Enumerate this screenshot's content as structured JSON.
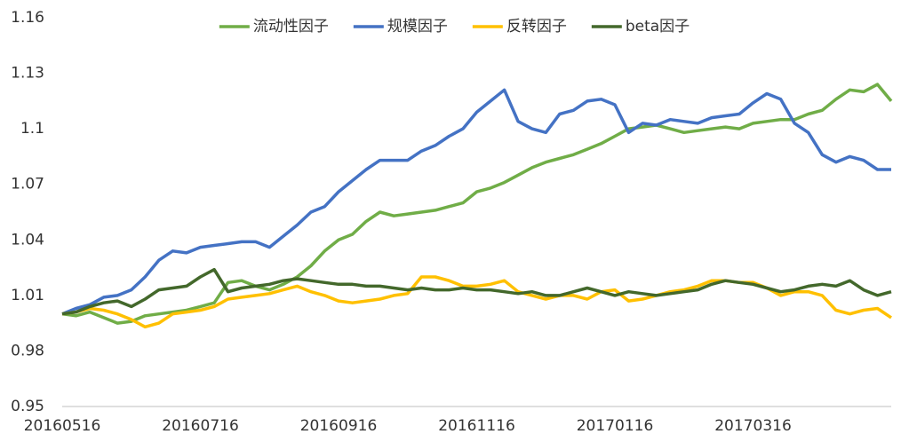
{
  "chart_data": {
    "type": "line",
    "categories": [
      "20160516",
      null,
      null,
      null,
      null,
      null,
      null,
      null,
      null,
      null,
      "20160716",
      null,
      null,
      null,
      null,
      null,
      null,
      null,
      null,
      null,
      "20160916",
      null,
      null,
      null,
      null,
      null,
      null,
      null,
      null,
      null,
      "20161116",
      null,
      null,
      null,
      null,
      null,
      null,
      null,
      null,
      null,
      "20170116",
      null,
      null,
      null,
      null,
      null,
      null,
      null,
      null,
      null,
      "20170316",
      null,
      null,
      null,
      null,
      null,
      null,
      null,
      null,
      null,
      null
    ],
    "series": [
      {
        "name": "流动性因子",
        "color": "#70ad47",
        "values": [
          1.0,
          0.999,
          1.001,
          0.998,
          0.995,
          0.996,
          0.999,
          1.0,
          1.001,
          1.002,
          1.004,
          1.006,
          1.017,
          1.018,
          1.015,
          1.013,
          1.016,
          1.02,
          1.026,
          1.034,
          1.04,
          1.043,
          1.05,
          1.055,
          1.053,
          1.054,
          1.055,
          1.056,
          1.058,
          1.06,
          1.066,
          1.068,
          1.071,
          1.075,
          1.079,
          1.082,
          1.084,
          1.086,
          1.089,
          1.092,
          1.096,
          1.1,
          1.101,
          1.102,
          1.1,
          1.098,
          1.099,
          1.1,
          1.101,
          1.1,
          1.103,
          1.104,
          1.105,
          1.105,
          1.108,
          1.11,
          1.116,
          1.121,
          1.12,
          1.124,
          1.115
        ]
      },
      {
        "name": "规模因子",
        "color": "#4472c4",
        "values": [
          1.0,
          1.003,
          1.005,
          1.009,
          1.01,
          1.013,
          1.02,
          1.029,
          1.034,
          1.033,
          1.036,
          1.037,
          1.038,
          1.039,
          1.039,
          1.036,
          1.042,
          1.048,
          1.055,
          1.058,
          1.066,
          1.072,
          1.078,
          1.083,
          1.083,
          1.083,
          1.088,
          1.091,
          1.096,
          1.1,
          1.109,
          1.115,
          1.121,
          1.104,
          1.1,
          1.098,
          1.108,
          1.11,
          1.115,
          1.116,
          1.113,
          1.098,
          1.103,
          1.102,
          1.105,
          1.104,
          1.103,
          1.106,
          1.107,
          1.108,
          1.114,
          1.119,
          1.116,
          1.103,
          1.098,
          1.086,
          1.082,
          1.085,
          1.083,
          1.078,
          1.078
        ]
      },
      {
        "name": "反转因子",
        "color": "#ffc000",
        "values": [
          1.0,
          1.001,
          1.003,
          1.002,
          1.0,
          0.997,
          0.993,
          0.995,
          1.0,
          1.001,
          1.002,
          1.004,
          1.008,
          1.009,
          1.01,
          1.011,
          1.013,
          1.015,
          1.012,
          1.01,
          1.007,
          1.006,
          1.007,
          1.008,
          1.01,
          1.011,
          1.02,
          1.02,
          1.018,
          1.015,
          1.015,
          1.016,
          1.018,
          1.012,
          1.01,
          1.008,
          1.01,
          1.01,
          1.008,
          1.012,
          1.013,
          1.007,
          1.008,
          1.01,
          1.012,
          1.013,
          1.015,
          1.018,
          1.018,
          1.017,
          1.017,
          1.014,
          1.01,
          1.012,
          1.012,
          1.01,
          1.002,
          1.0,
          1.002,
          1.003,
          0.998
        ]
      },
      {
        "name": "beta因子",
        "color": "#43682b",
        "values": [
          1.0,
          1.001,
          1.004,
          1.006,
          1.007,
          1.004,
          1.008,
          1.013,
          1.014,
          1.015,
          1.02,
          1.024,
          1.012,
          1.014,
          1.015,
          1.016,
          1.018,
          1.019,
          1.018,
          1.017,
          1.016,
          1.016,
          1.015,
          1.015,
          1.014,
          1.013,
          1.014,
          1.013,
          1.013,
          1.014,
          1.013,
          1.013,
          1.012,
          1.011,
          1.012,
          1.01,
          1.01,
          1.012,
          1.014,
          1.012,
          1.01,
          1.012,
          1.011,
          1.01,
          1.011,
          1.012,
          1.013,
          1.016,
          1.018,
          1.017,
          1.016,
          1.014,
          1.012,
          1.013,
          1.015,
          1.016,
          1.015,
          1.018,
          1.013,
          1.01,
          1.012
        ]
      }
    ],
    "ylim": [
      0.95,
      1.16
    ],
    "yticks": [
      0.95,
      0.98,
      1.01,
      1.04,
      1.07,
      1.1,
      1.13,
      1.16
    ],
    "grid": false,
    "legend": "top"
  }
}
